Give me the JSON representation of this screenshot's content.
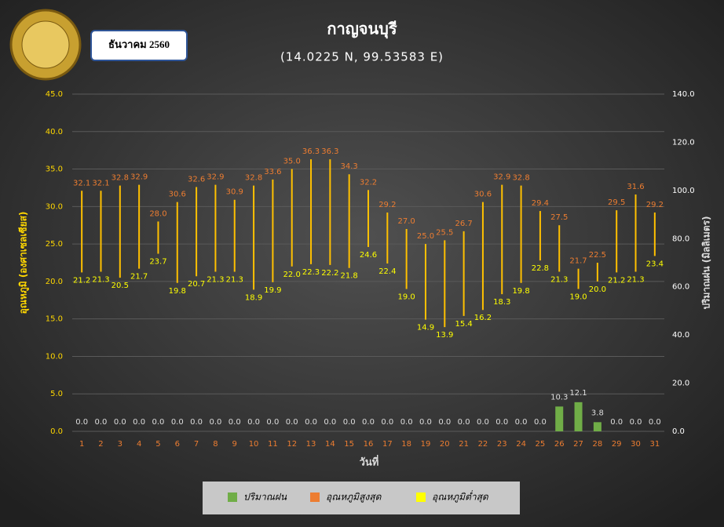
{
  "chart_data": {
    "type": "bar",
    "title": "กาญจนบุรี",
    "subtitle": "(14.0225 N, 99.53583 E)",
    "period": "ธันวาคม 2560",
    "x_label": "วันที่",
    "y_label": "อุณหภูมิ (องศาเซลเซียส)",
    "y2_label": "ปริมาณฝน (มิลลิเมตร)",
    "categories": [
      "1",
      "2",
      "3",
      "4",
      "5",
      "6",
      "7",
      "8",
      "9",
      "10",
      "11",
      "12",
      "13",
      "14",
      "15",
      "16",
      "17",
      "18",
      "19",
      "20",
      "21",
      "22",
      "23",
      "24",
      "25",
      "26",
      "27",
      "28",
      "29",
      "30",
      "31"
    ],
    "series": [
      {
        "name": "ปริมาณฝน",
        "color": "#70ad47",
        "axis": "y2",
        "values": [
          0,
          0,
          0,
          0,
          0,
          0,
          0,
          0,
          0,
          0,
          0,
          0,
          0,
          0,
          0,
          0,
          0,
          0,
          0,
          0,
          0,
          0,
          0,
          0,
          0,
          10.3,
          12.1,
          3.8,
          0,
          0,
          0
        ],
        "value_labels": [
          "0.0",
          "0.0",
          "0.0",
          "0.0",
          "0.0",
          "0.0",
          "0.0",
          "0.0",
          "0.0",
          "0.0",
          "0.0",
          "0.0",
          "0.0",
          "0.0",
          "0.0",
          "0.0",
          "0.0",
          "0.0",
          "0.0",
          "0.0",
          "0.0",
          "0.0",
          "0.0",
          "0.0",
          "0.0",
          "10.3",
          "12.1",
          "3.8",
          "0.0",
          "0.0",
          "0.0"
        ]
      },
      {
        "name": "อุณหภูมิสูงสุด",
        "color": "#ed7d31",
        "values": [
          32.1,
          32.1,
          32.8,
          32.9,
          28.0,
          30.6,
          32.6,
          32.9,
          30.9,
          32.8,
          33.6,
          35.0,
          36.3,
          36.3,
          34.3,
          32.2,
          29.2,
          27.0,
          25.0,
          25.5,
          26.7,
          30.6,
          32.9,
          32.8,
          29.4,
          27.5,
          21.7,
          22.5,
          29.5,
          31.6,
          29.2
        ],
        "value_labels": [
          "32.1",
          "32.1",
          "32.8",
          "32.9",
          "28.0",
          "30.6",
          "32.6",
          "32.9",
          "30.9",
          "32.8",
          "33.6",
          "35.0",
          "36.3",
          "36.3",
          "34.3",
          "32.2",
          "29.2",
          "27.0",
          "25.0",
          "25.5",
          "26.7",
          "30.6",
          "32.9",
          "32.8",
          "29.4",
          "27.5",
          "21.7",
          "22.5",
          "29.5",
          "31.6",
          "29.2"
        ]
      },
      {
        "name": "อุณหภูมิต่ำสุด",
        "color": "#ffff00",
        "values": [
          21.2,
          21.3,
          20.5,
          21.7,
          23.7,
          19.8,
          20.7,
          21.3,
          21.3,
          18.9,
          19.9,
          22.0,
          22.3,
          22.2,
          21.8,
          24.6,
          22.4,
          19.0,
          14.9,
          13.9,
          15.4,
          16.2,
          18.3,
          19.8,
          22.8,
          21.3,
          19.0,
          20.0,
          21.2,
          21.3,
          23.4
        ],
        "value_labels": [
          "21.2",
          "21.3",
          "20.5",
          "21.7",
          "23.7",
          "19.8",
          "20.7",
          "21.3",
          "21.3",
          "18.9",
          "19.9",
          "22.0",
          "22.3",
          "22.2",
          "21.8",
          "24.6",
          "22.4",
          "19.0",
          "14.9",
          "13.9",
          "15.4",
          "16.2",
          "18.3",
          "19.8",
          "22.8",
          "21.3",
          "19.0",
          "20.0",
          "21.2",
          "21.3",
          "23.4"
        ]
      }
    ],
    "ylim": [
      0,
      45
    ],
    "yticks": [
      {
        "value": 0,
        "label": "0.0"
      },
      {
        "value": 5,
        "label": "5.0"
      },
      {
        "value": 10,
        "label": "10.0"
      },
      {
        "value": 15,
        "label": "15.0"
      },
      {
        "value": 20,
        "label": "20.0"
      },
      {
        "value": 25,
        "label": "25.0"
      },
      {
        "value": 30,
        "label": "30.0"
      },
      {
        "value": 35,
        "label": "35.0"
      },
      {
        "value": 40,
        "label": "40.0"
      },
      {
        "value": 45,
        "label": "45.0"
      }
    ],
    "y2lim": [
      0,
      140
    ],
    "y2ticks": [
      {
        "value": 0,
        "label": "0.0"
      },
      {
        "value": 20,
        "label": "20.0"
      },
      {
        "value": 40,
        "label": "40.0"
      },
      {
        "value": 60,
        "label": "60.0"
      },
      {
        "value": 80,
        "label": "80.0"
      },
      {
        "value": 100,
        "label": "100.0"
      },
      {
        "value": 120,
        "label": "120.0"
      },
      {
        "value": 140,
        "label": "140.0"
      }
    ],
    "grid": true
  }
}
